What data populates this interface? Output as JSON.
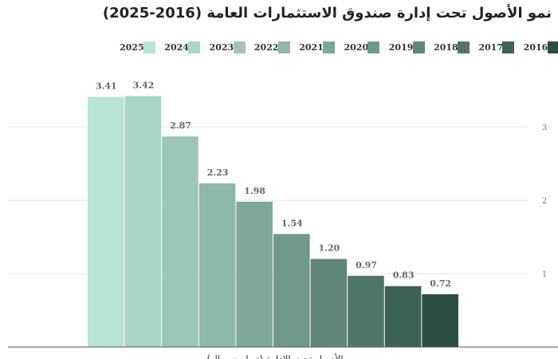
{
  "chart_data": {
    "type": "bar",
    "title": "نمو الأصول تحت إدارة صندوق الاستثمارات العامة (2016-2025)",
    "xlabel": "الأصول تحت الإدارة (تريليون ريال)",
    "ylabel": "",
    "ylim": [
      0,
      3.7
    ],
    "yticks": [
      "1",
      "2",
      "3"
    ],
    "grid": true,
    "legend_position": "top",
    "series": [
      {
        "name": "2025",
        "value": 3.41,
        "label": "3.41",
        "color": "#b8e4d3"
      },
      {
        "name": "2024",
        "value": 3.42,
        "label": "3.42",
        "color": "#a9d6c4"
      },
      {
        "name": "2023",
        "value": 2.87,
        "label": "2.87",
        "color": "#9bc8b6"
      },
      {
        "name": "2022",
        "value": 2.23,
        "label": "2.23",
        "color": "#8cb9a7"
      },
      {
        "name": "2021",
        "value": 1.98,
        "label": "1.98",
        "color": "#7ea999"
      },
      {
        "name": "2020",
        "value": 1.54,
        "label": "1.54",
        "color": "#6f998a"
      },
      {
        "name": "2019",
        "value": 1.2,
        "label": "1.20",
        "color": "#5f887a"
      },
      {
        "name": "2018",
        "value": 0.97,
        "label": "0.97",
        "color": "#4e7667"
      },
      {
        "name": "2017",
        "value": 0.83,
        "label": "0.83",
        "color": "#3d6354"
      },
      {
        "name": "2016",
        "value": 0.72,
        "label": "0.72",
        "color": "#2b4e40"
      }
    ]
  }
}
